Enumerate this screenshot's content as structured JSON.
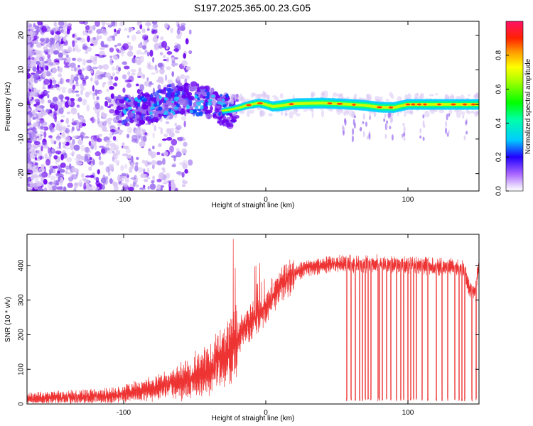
{
  "title": "S197.2025.365.00.23.G05",
  "colors": {
    "snr_line": "#ee3333",
    "axis": "#000000",
    "blob_weak": "#d8c4f4",
    "blob_mid": "#9a6cf0",
    "blob_strong": "#6a00f0"
  },
  "chart_data": [
    {
      "type": "heatmap",
      "title": "S197.2025.365.00.23.G05",
      "xlabel": "Height of straight line (km)",
      "ylabel": "Frequency (Hz)",
      "xlim": [
        -168,
        150
      ],
      "ylim": [
        -25,
        24
      ],
      "xticks": [
        -100,
        0,
        100
      ],
      "xtick_labels": [
        "-100",
        "0",
        "100"
      ],
      "yticks": [
        -20,
        -10,
        0,
        10,
        20
      ],
      "ytick_labels": [
        "-20",
        "-10",
        "0",
        "10",
        "20"
      ],
      "colorbar": {
        "label": "Normalized spectral amplitude",
        "range": [
          0,
          1
        ],
        "ticks": [
          0.0,
          0.2,
          0.4,
          0.6,
          0.8
        ],
        "tick_labels": [
          "0.0",
          "0.2",
          "0.4",
          "0.6",
          "0.8"
        ]
      },
      "signal_ridge": {
        "x": [
          -30,
          -25,
          -20,
          -15,
          -10,
          -5,
          0,
          5,
          10,
          20,
          40,
          50,
          60,
          70,
          80,
          90,
          100,
          120,
          140,
          150
        ],
        "y": [
          -1.8,
          -1.5,
          -1.1,
          -0.5,
          0.0,
          0.4,
          0.0,
          -0.6,
          -0.4,
          0.2,
          0.4,
          0.2,
          0.0,
          -0.3,
          -0.8,
          -0.9,
          0.0,
          0.0,
          0.0,
          0.0
        ]
      }
    },
    {
      "type": "line",
      "xlabel": "Height of straight line (km)",
      "ylabel": "SNR (10 * v/v)",
      "xlim": [
        -168,
        150
      ],
      "ylim": [
        0,
        490
      ],
      "xticks": [
        -100,
        0,
        100
      ],
      "xtick_labels": [
        "-100",
        "0",
        "100"
      ],
      "yticks": [
        0,
        100,
        200,
        300,
        400
      ],
      "ytick_labels": [
        "0",
        "100",
        "200",
        "300",
        "400"
      ],
      "series": [
        {
          "name": "SNR",
          "x": [
            -168,
            -150,
            -130,
            -110,
            -100,
            -90,
            -80,
            -70,
            -60,
            -50,
            -40,
            -30,
            -25,
            -20,
            -15,
            -10,
            -5,
            0,
            5,
            10,
            15,
            20,
            30,
            40,
            50,
            60,
            70,
            80,
            90,
            100,
            110,
            120,
            130,
            140,
            143,
            147,
            150
          ],
          "y": [
            15,
            18,
            20,
            25,
            30,
            38,
            45,
            55,
            65,
            80,
            95,
            130,
            160,
            190,
            220,
            240,
            260,
            280,
            310,
            340,
            360,
            375,
            395,
            400,
            405,
            405,
            405,
            405,
            400,
            400,
            400,
            395,
            395,
            390,
            330,
            330,
            400
          ],
          "dropouts_x": [
            57,
            60,
            63,
            66,
            68,
            70,
            72,
            74,
            79,
            80,
            82,
            85,
            88,
            92,
            95,
            97,
            100,
            102,
            104,
            106,
            110,
            114,
            120,
            124,
            128,
            133,
            136,
            138,
            140,
            145,
            148
          ]
        }
      ]
    }
  ]
}
